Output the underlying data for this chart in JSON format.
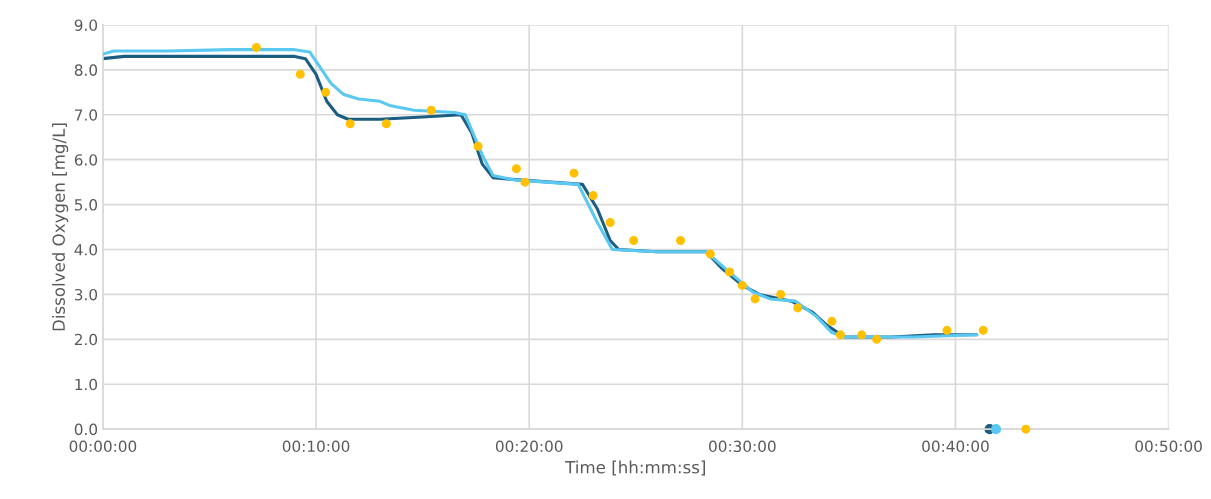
{
  "chart_data": {
    "type": "line",
    "xlabel": "Time [hh:mm:ss]",
    "ylabel": "Dissolved Oxygen [mg/L]",
    "xlim": [
      0,
      50
    ],
    "xticks": [
      {
        "value": 0,
        "label": "00:00:00"
      },
      {
        "value": 10,
        "label": "00:10:00"
      },
      {
        "value": 20,
        "label": "00:20:00"
      },
      {
        "value": 30,
        "label": "00:30:00"
      },
      {
        "value": 40,
        "label": "00:40:00"
      },
      {
        "value": 50,
        "label": "00:50:00"
      }
    ],
    "ylim": [
      0,
      9
    ],
    "yticks": [
      {
        "value": 0,
        "label": "0.0"
      },
      {
        "value": 1,
        "label": "1.0"
      },
      {
        "value": 2,
        "label": "2.0"
      },
      {
        "value": 3,
        "label": "3.0"
      },
      {
        "value": 4,
        "label": "4.0"
      },
      {
        "value": 5,
        "label": "5.0"
      },
      {
        "value": 6,
        "label": "6.0"
      },
      {
        "value": 7,
        "label": "7.0"
      },
      {
        "value": 8,
        "label": "8.0"
      },
      {
        "value": 9,
        "label": "9.0"
      }
    ],
    "grid": true,
    "marker": "none",
    "line_style": "solid",
    "series": [
      {
        "color": "#1b5e82",
        "x": [
          0,
          1,
          3,
          5,
          7,
          9,
          9.5,
          10,
          10.5,
          11,
          11.5,
          13,
          15,
          16.8,
          17.3,
          17.8,
          18.3,
          19.5,
          22.5,
          23.2,
          23.8,
          24.2,
          26,
          28.3,
          29,
          30,
          30.8,
          32.3,
          33.3,
          34,
          34.8,
          37,
          39,
          41,
          41.3,
          41.6
        ],
        "values": [
          8.25,
          8.3,
          8.3,
          8.3,
          8.3,
          8.3,
          8.25,
          7.9,
          7.3,
          7.0,
          6.9,
          6.9,
          6.95,
          7.0,
          6.6,
          5.9,
          5.6,
          5.55,
          5.45,
          4.9,
          4.2,
          4.0,
          3.95,
          3.95,
          3.6,
          3.2,
          3.0,
          2.85,
          2.6,
          2.3,
          2.05,
          2.05,
          2.1,
          2.1,
          null,
          0
        ]
      },
      {
        "color": "#5ac8f0",
        "x": [
          0,
          0.5,
          3,
          6,
          9,
          9.7,
          10.2,
          10.7,
          11.3,
          12,
          13,
          13.5,
          14.6,
          16.5,
          17,
          17.8,
          18.3,
          19.3,
          22.3,
          23.2,
          23.9,
          26,
          28.3,
          29.5,
          30.5,
          31.3,
          32.5,
          33.5,
          34.2,
          34.8,
          38,
          41,
          41.5,
          41.9
        ],
        "values": [
          8.35,
          8.42,
          8.42,
          8.45,
          8.45,
          8.4,
          8.05,
          7.7,
          7.45,
          7.35,
          7.3,
          7.2,
          7.1,
          7.05,
          7.0,
          6.1,
          5.65,
          5.55,
          5.45,
          4.6,
          4.0,
          3.95,
          3.95,
          3.45,
          3.05,
          2.9,
          2.85,
          2.5,
          2.15,
          2.05,
          2.05,
          2.1,
          null,
          0
        ]
      },
      {
        "type": "scatter",
        "marker": "circle",
        "color": "#ffc000",
        "x": [
          7.2,
          9.26,
          10.45,
          11.6,
          13.3,
          15.4,
          17.6,
          19.4,
          19.8,
          22.1,
          23.0,
          23.8,
          24.9,
          27.1,
          28.5,
          29.4,
          30.0,
          30.6,
          31.8,
          32.6,
          34.2,
          34.6,
          35.6,
          36.3,
          39.6,
          41.3,
          43.3
        ],
        "values": [
          8.5,
          7.9,
          7.5,
          6.8,
          6.8,
          7.1,
          6.3,
          5.8,
          5.5,
          5.7,
          5.2,
          4.6,
          4.2,
          4.2,
          3.9,
          3.5,
          3.2,
          2.9,
          3.0,
          2.7,
          2.4,
          2.1,
          2.1,
          2.0,
          2.2,
          2.2,
          0.0
        ]
      }
    ]
  }
}
